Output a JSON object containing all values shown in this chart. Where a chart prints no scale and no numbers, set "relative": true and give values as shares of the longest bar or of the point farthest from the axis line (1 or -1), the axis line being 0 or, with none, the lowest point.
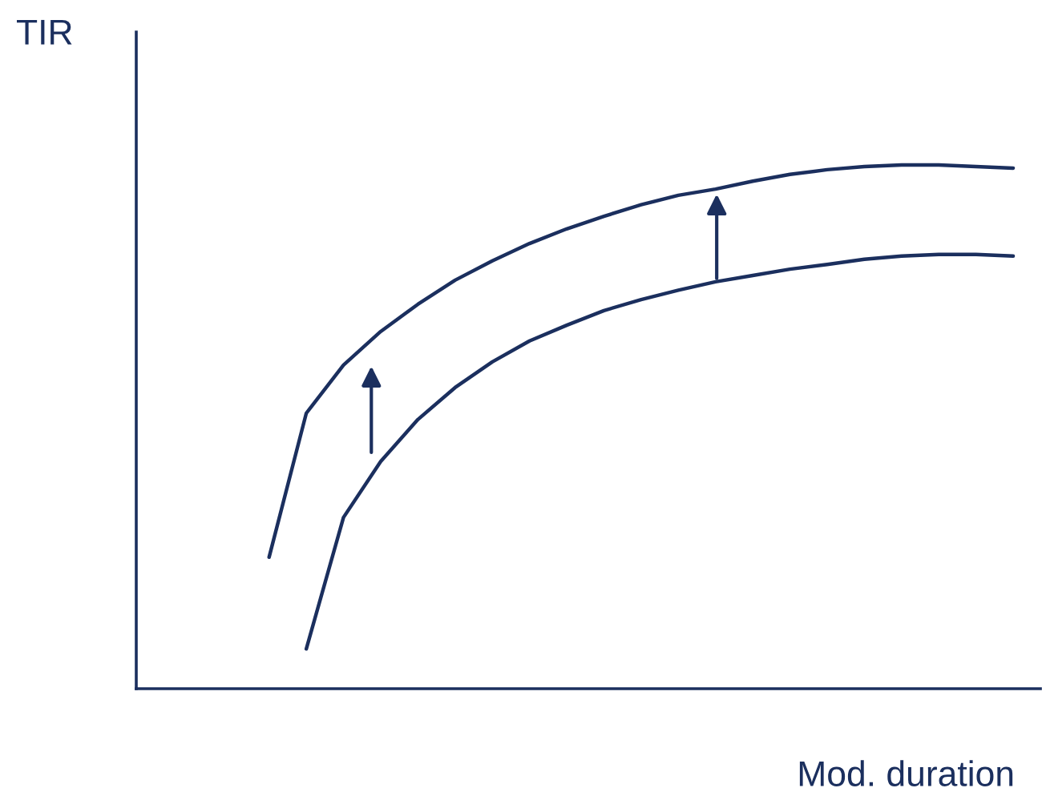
{
  "chart_data": {
    "type": "line",
    "relative": true,
    "xlabel": "Mod. duration",
    "annotations": [
      "TIR"
    ],
    "tick_labels": false,
    "categories": [
      null,
      null,
      null,
      null,
      null,
      null,
      null,
      null,
      null,
      null,
      null,
      null,
      null,
      null,
      null,
      null,
      null,
      null,
      null,
      null,
      null
    ],
    "series": [
      {
        "color": "#1b2f5e",
        "values": [
          0.251,
          0.526,
          0.618,
          0.682,
          0.734,
          0.78,
          0.817,
          0.85,
          0.878,
          0.902,
          0.924,
          0.942,
          0.954,
          0.969,
          0.982,
          0.991,
          0.997,
          1,
          1,
          0.997,
          0.994
        ]
      },
      {
        "color": "#1b2f5e",
        "values": [
          null,
          0.076,
          0.327,
          0.434,
          0.514,
          0.575,
          0.624,
          0.664,
          0.694,
          0.722,
          0.743,
          0.761,
          0.777,
          0.789,
          0.801,
          0.81,
          0.82,
          0.826,
          0.829,
          0.829,
          0.826
        ]
      }
    ]
  }
}
